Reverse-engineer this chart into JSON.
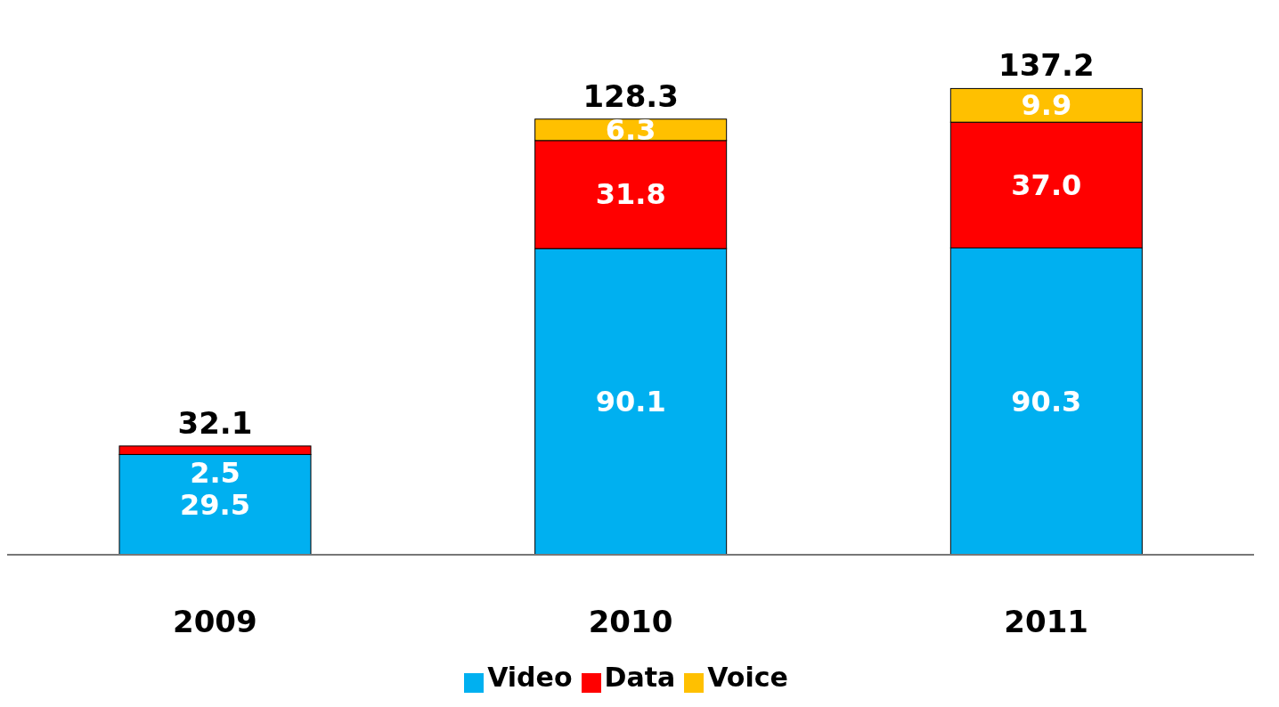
{
  "chart_data": {
    "type": "bar",
    "stacked": true,
    "categories": [
      "2009",
      "2010",
      "2011"
    ],
    "series": [
      {
        "name": "Video",
        "color": "#00b0f0",
        "values": [
          29.5,
          90.1,
          90.3
        ],
        "value_labels": [
          "29.5",
          "90.1",
          "90.3"
        ]
      },
      {
        "name": "Data",
        "color": "#ff0000",
        "values": [
          2.5,
          31.8,
          37.0
        ],
        "value_labels": [
          "2.5",
          "31.8",
          "37.0"
        ]
      },
      {
        "name": "Voice",
        "color": "#ffc000",
        "values": [
          null,
          6.3,
          9.9
        ],
        "value_labels": [
          null,
          "6.3",
          "9.9"
        ]
      }
    ],
    "totals": [
      "32.1",
      "128.3",
      "137.2"
    ],
    "legend": "bottom",
    "grid": false
  }
}
